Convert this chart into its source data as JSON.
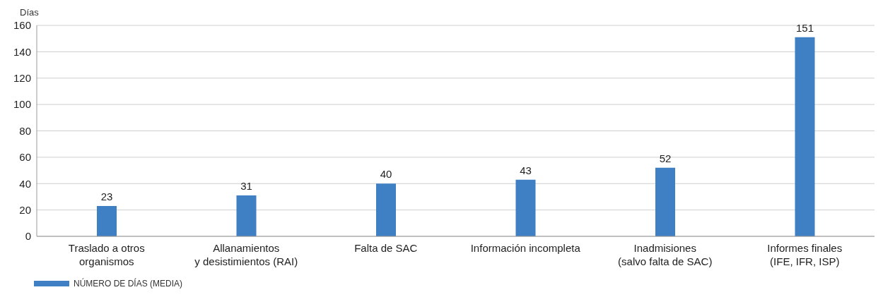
{
  "chart_data": {
    "type": "bar",
    "ylabel": "Días",
    "categories": [
      "Traslado a otros\norganismos",
      "Allanamientos\ny desistimientos (RAI)",
      "Falta de SAC",
      "Información incompleta",
      "Inadmisiones\n(salvo falta de SAC)",
      "Informes finales\n(IFE, IFR, ISP)"
    ],
    "series": [
      {
        "name": "NÚMERO DE DÍAS (MEDIA)",
        "color": "#3f7fc4",
        "values": [
          23,
          31,
          40,
          43,
          52,
          151
        ]
      }
    ],
    "ylim": [
      0,
      160
    ],
    "yticks": [
      0,
      20,
      40,
      60,
      80,
      100,
      120,
      140,
      160
    ],
    "grid": "y",
    "legend": "bottom left",
    "data_labels": true
  }
}
